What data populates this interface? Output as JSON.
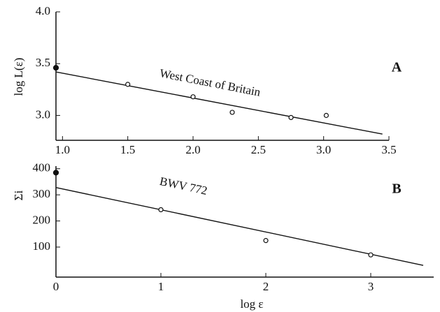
{
  "chart_data": [
    {
      "type": "scatter",
      "ylabel": "log L(ε)",
      "annotation": "A",
      "xlim": [
        0.95,
        3.5
      ],
      "ylim": [
        2.76,
        4.0
      ],
      "xticks": [
        {
          "value": 1,
          "label": "1.0"
        },
        1.5,
        {
          "value": 2,
          "label": "2.0"
        },
        2.5,
        {
          "value": 3,
          "label": "3.0"
        },
        3.5
      ],
      "yticks": [
        {
          "value": 3,
          "label": "3.0"
        },
        3.5,
        {
          "value": 4,
          "label": "4.0"
        }
      ],
      "series": [
        {
          "name": "West Coast of Britain",
          "style": "line",
          "x": [
            0.95,
            3.45
          ],
          "values": [
            3.42,
            2.82
          ]
        },
        {
          "style": "open",
          "x": [
            1.5,
            2.0,
            2.3,
            2.75,
            3.02
          ],
          "values": [
            3.3,
            3.18,
            3.03,
            2.98,
            3.0
          ]
        },
        {
          "style": "filled",
          "x": [
            0.95
          ],
          "values": [
            3.46
          ]
        }
      ]
    },
    {
      "type": "scatter",
      "ylabel": "Σi",
      "xlabel": "log ε",
      "annotation": "B",
      "xlim": [
        0,
        3.6
      ],
      "ylim": [
        -15,
        410
      ],
      "xticks": [
        0,
        1,
        2,
        3
      ],
      "yticks": [
        100,
        200,
        300,
        400
      ],
      "series": [
        {
          "name": "BWV 772",
          "style": "line",
          "x": [
            0,
            3.5
          ],
          "values": [
            328,
            30
          ]
        },
        {
          "style": "open",
          "x": [
            1,
            2,
            3
          ],
          "values": [
            243,
            125,
            70
          ]
        },
        {
          "style": "filled",
          "x": [
            0
          ],
          "values": [
            385
          ]
        }
      ]
    }
  ]
}
